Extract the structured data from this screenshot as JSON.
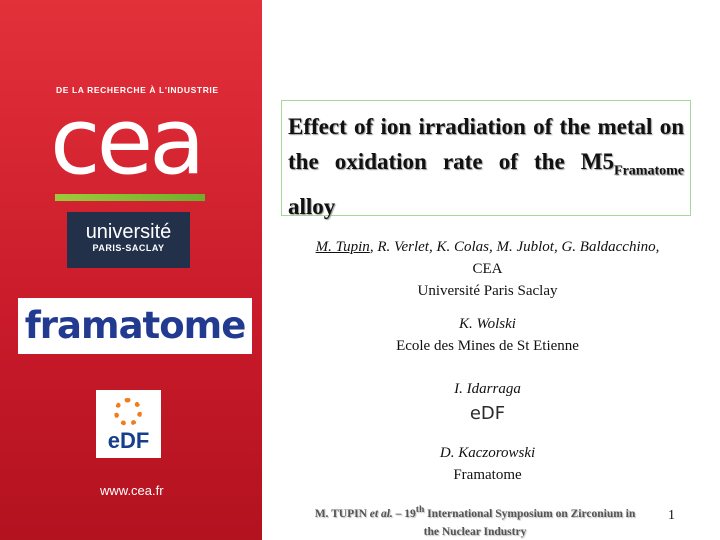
{
  "left": {
    "tagline": "DE LA RECHERCHE À L'INDUSTRIE",
    "cea_logo": "cea",
    "university": [
      "université",
      "PARIS-SACLAY"
    ],
    "framatome_logo": "framatome",
    "edf_logo": "eDF",
    "website": "www.cea.fr"
  },
  "title": {
    "main": "Effect of ion irradiation of the metal on the oxidation rate of the M5",
    "subscript": "Framatome",
    "end": " alloy"
  },
  "authors": [
    {
      "presenter": "M. Tupin",
      "coauthors": ", R. Verlet, K. Colas, M. Jublot, G. Baldacchino,",
      "affiliations": [
        "CEA",
        "Université Paris Saclay"
      ]
    },
    {
      "name": "K. Wolski",
      "affiliations": [
        "Ecole des Mines de St Etienne"
      ]
    },
    {
      "name": "I. Idarraga",
      "affiliations": [
        "eDF"
      ]
    },
    {
      "name": "D. Kaczorowski",
      "affiliations": [
        "Framatome"
      ]
    }
  ],
  "footer": {
    "author": "M. TUPIN",
    "etal": "et al.",
    "ordinal": "– 19",
    "ordinal_suffix": "th",
    "event": " International Symposium on Zirconium in the Nuclear Industry",
    "page": "1"
  }
}
